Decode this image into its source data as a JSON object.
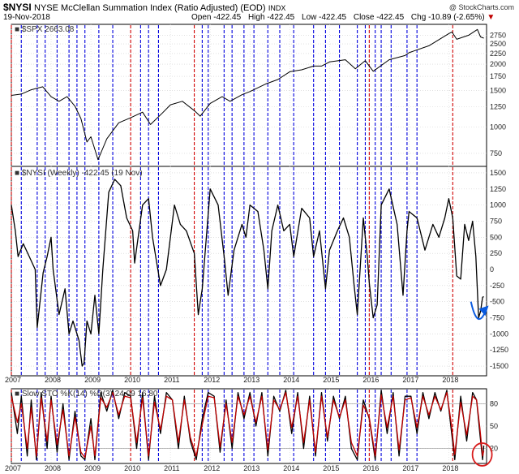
{
  "header": {
    "symbol": "$NYSI",
    "title_rest": "NYSE McClellan Summation Index (Ratio Adjusted) (EOD)",
    "exchange": "INDX",
    "watermark": "@ StockCharts.com",
    "date": "19-Nov-2018",
    "open_label": "Open",
    "open": "-422.45",
    "high_label": "High",
    "high": "-422.45",
    "low_label": "Low",
    "low": "-422.45",
    "close_label": "Close",
    "close": "-422.45",
    "chg_label": "Chg",
    "chg": "-10.89 (-2.65%)",
    "chg_arrow": "▼"
  },
  "chart_data": [
    {
      "panel": "price",
      "type": "line",
      "legend": "■ $SPX 2663.08",
      "scale": "log",
      "ylim": [
        650,
        3100
      ],
      "yticks": [
        750,
        1000,
        1250,
        1500,
        1750,
        2000,
        2250,
        2500,
        2750
      ],
      "series": [
        {
          "name": "$SPX",
          "color": "#000000",
          "x": [
            2007.0,
            2007.25,
            2007.5,
            2007.79,
            2008.0,
            2008.2,
            2008.4,
            2008.6,
            2008.75,
            2008.9,
            2009.0,
            2009.18,
            2009.4,
            2009.7,
            2010.0,
            2010.3,
            2010.5,
            2010.8,
            2011.0,
            2011.3,
            2011.6,
            2011.75,
            2012.0,
            2012.3,
            2012.5,
            2012.8,
            2013.0,
            2013.4,
            2013.7,
            2014.0,
            2014.3,
            2014.6,
            2014.8,
            2015.0,
            2015.4,
            2015.65,
            2015.9,
            2016.1,
            2016.5,
            2016.9,
            2017.0,
            2017.5,
            2018.0,
            2018.08,
            2018.2,
            2018.5,
            2018.72,
            2018.8,
            2018.88
          ],
          "values": [
            1420,
            1440,
            1510,
            1560,
            1400,
            1330,
            1400,
            1260,
            1100,
            850,
            900,
            700,
            880,
            1050,
            1110,
            1180,
            1030,
            1170,
            1280,
            1330,
            1200,
            1130,
            1300,
            1400,
            1330,
            1430,
            1480,
            1610,
            1690,
            1840,
            1880,
            1960,
            1960,
            2050,
            2100,
            1900,
            2080,
            1850,
            2100,
            2200,
            2270,
            2450,
            2800,
            2850,
            2630,
            2750,
            2930,
            2700,
            2663
          ]
        }
      ]
    },
    {
      "panel": "indicator",
      "type": "line",
      "legend": "■ $NYSI (Weekly) -422.45 (19 Nov)",
      "ylim": [
        -1650,
        1600
      ],
      "yticks": [
        -1500,
        -1250,
        -1000,
        -750,
        -500,
        -250,
        0,
        250,
        500,
        750,
        1000,
        1250,
        1500
      ],
      "series": [
        {
          "name": "$NYSI (Weekly)",
          "color": "#000000",
          "x": [
            2007.0,
            2007.1,
            2007.17,
            2007.3,
            2007.45,
            2007.6,
            2007.65,
            2007.8,
            2007.9,
            2008.0,
            2008.05,
            2008.2,
            2008.35,
            2008.45,
            2008.55,
            2008.7,
            2008.78,
            2008.83,
            2008.9,
            2009.0,
            2009.1,
            2009.2,
            2009.3,
            2009.45,
            2009.6,
            2009.75,
            2009.9,
            2010.05,
            2010.1,
            2010.3,
            2010.45,
            2010.55,
            2010.75,
            2010.9,
            2011.1,
            2011.25,
            2011.4,
            2011.6,
            2011.7,
            2011.8,
            2012.0,
            2012.2,
            2012.35,
            2012.45,
            2012.6,
            2012.8,
            2012.9,
            2013.0,
            2013.2,
            2013.35,
            2013.45,
            2013.55,
            2013.7,
            2013.85,
            2014.0,
            2014.1,
            2014.3,
            2014.5,
            2014.6,
            2014.75,
            2014.9,
            2015.0,
            2015.2,
            2015.35,
            2015.5,
            2015.62,
            2015.7,
            2015.85,
            2015.95,
            2016.0,
            2016.1,
            2016.2,
            2016.3,
            2016.5,
            2016.7,
            2016.85,
            2016.95,
            2017.0,
            2017.2,
            2017.4,
            2017.6,
            2017.75,
            2017.9,
            2018.0,
            2018.1,
            2018.2,
            2018.3,
            2018.4,
            2018.5,
            2018.6,
            2018.68,
            2018.75,
            2018.8,
            2018.85,
            2018.88
          ],
          "values": [
            1000,
            600,
            200,
            400,
            200,
            0,
            -900,
            -50,
            200,
            500,
            0,
            -700,
            -300,
            -1000,
            -800,
            -1100,
            -1500,
            -1450,
            -800,
            -1000,
            -400,
            -1000,
            0,
            1200,
            1400,
            1300,
            800,
            600,
            100,
            1000,
            1100,
            500,
            -250,
            0,
            1000,
            700,
            600,
            250,
            -700,
            -300,
            1250,
            1000,
            200,
            -400,
            300,
            700,
            500,
            1000,
            900,
            300,
            -300,
            600,
            1000,
            600,
            700,
            200,
            950,
            800,
            200,
            600,
            -300,
            300,
            600,
            800,
            500,
            -250,
            -700,
            800,
            200,
            -200,
            -750,
            -550,
            1000,
            1250,
            700,
            -400,
            600,
            900,
            800,
            300,
            700,
            500,
            800,
            1100,
            800,
            -100,
            -150,
            700,
            450,
            750,
            200,
            -750,
            -650,
            -430,
            -422
          ]
        }
      ]
    },
    {
      "panel": "stochastic",
      "type": "line",
      "legend": "■ Slow STO %K(14) %D(3) 24.09 16.80",
      "ylim": [
        0,
        100
      ],
      "yticks": [
        20,
        50,
        80
      ],
      "series": [
        {
          "name": "%K(14)",
          "color": "#000000",
          "x": [
            2007.0,
            2007.15,
            2007.25,
            2007.4,
            2007.5,
            2007.63,
            2007.75,
            2007.9,
            2008.0,
            2008.15,
            2008.3,
            2008.45,
            2008.6,
            2008.75,
            2008.85,
            2009.0,
            2009.1,
            2009.25,
            2009.4,
            2009.55,
            2009.7,
            2009.85,
            2010.0,
            2010.15,
            2010.3,
            2010.45,
            2010.6,
            2010.75,
            2010.9,
            2011.05,
            2011.2,
            2011.35,
            2011.5,
            2011.65,
            2011.8,
            2011.95,
            2012.1,
            2012.25,
            2012.4,
            2012.55,
            2012.7,
            2012.85,
            2013.0,
            2013.15,
            2013.3,
            2013.45,
            2013.6,
            2013.75,
            2013.9,
            2014.05,
            2014.2,
            2014.35,
            2014.5,
            2014.65,
            2014.8,
            2014.95,
            2015.1,
            2015.25,
            2015.4,
            2015.55,
            2015.7,
            2015.85,
            2016.0,
            2016.15,
            2016.3,
            2016.45,
            2016.6,
            2016.75,
            2016.9,
            2017.05,
            2017.2,
            2017.35,
            2017.5,
            2017.65,
            2017.8,
            2017.95,
            2018.05,
            2018.15,
            2018.3,
            2018.45,
            2018.6,
            2018.7,
            2018.78,
            2018.85,
            2018.88
          ],
          "values": [
            95,
            40,
            90,
            10,
            85,
            5,
            95,
            20,
            90,
            15,
            80,
            5,
            70,
            10,
            5,
            60,
            5,
            95,
            70,
            98,
            60,
            95,
            90,
            20,
            95,
            5,
            90,
            40,
            95,
            85,
            20,
            90,
            30,
            5,
            60,
            95,
            90,
            15,
            85,
            20,
            95,
            60,
            95,
            50,
            95,
            10,
            90,
            70,
            98,
            40,
            95,
            20,
            90,
            10,
            95,
            30,
            90,
            60,
            90,
            20,
            5,
            85,
            60,
            5,
            98,
            40,
            95,
            10,
            90,
            90,
            40,
            95,
            60,
            95,
            70,
            98,
            50,
            5,
            90,
            30,
            95,
            85,
            40,
            5,
            24
          ]
        },
        {
          "name": "%D(3)",
          "color": "#c00000",
          "x": [
            2007.0,
            2007.15,
            2007.25,
            2007.4,
            2007.5,
            2007.63,
            2007.75,
            2007.9,
            2008.0,
            2008.15,
            2008.3,
            2008.45,
            2008.6,
            2008.75,
            2008.85,
            2009.0,
            2009.1,
            2009.25,
            2009.4,
            2009.55,
            2009.7,
            2009.85,
            2010.0,
            2010.15,
            2010.3,
            2010.45,
            2010.6,
            2010.75,
            2010.9,
            2011.05,
            2011.2,
            2011.35,
            2011.5,
            2011.65,
            2011.8,
            2011.95,
            2012.1,
            2012.25,
            2012.4,
            2012.55,
            2012.7,
            2012.85,
            2013.0,
            2013.15,
            2013.3,
            2013.45,
            2013.6,
            2013.75,
            2013.9,
            2014.05,
            2014.2,
            2014.35,
            2014.5,
            2014.65,
            2014.8,
            2014.95,
            2015.1,
            2015.25,
            2015.4,
            2015.55,
            2015.7,
            2015.85,
            2016.0,
            2016.15,
            2016.3,
            2016.45,
            2016.6,
            2016.75,
            2016.9,
            2017.05,
            2017.2,
            2017.35,
            2017.5,
            2017.65,
            2017.8,
            2017.95,
            2018.05,
            2018.15,
            2018.3,
            2018.45,
            2018.6,
            2018.7,
            2018.78,
            2018.85,
            2018.88
          ],
          "values": [
            90,
            55,
            80,
            20,
            75,
            10,
            88,
            30,
            85,
            25,
            72,
            10,
            62,
            15,
            8,
            50,
            10,
            88,
            75,
            95,
            65,
            90,
            88,
            28,
            88,
            10,
            82,
            45,
            90,
            85,
            28,
            85,
            35,
            10,
            52,
            90,
            88,
            22,
            80,
            28,
            90,
            65,
            90,
            55,
            90,
            18,
            85,
            72,
            95,
            48,
            90,
            28,
            85,
            15,
            90,
            35,
            85,
            62,
            85,
            28,
            10,
            78,
            62,
            10,
            92,
            48,
            90,
            18,
            85,
            88,
            48,
            90,
            65,
            90,
            72,
            95,
            58,
            12,
            82,
            38,
            90,
            85,
            48,
            10,
            17
          ]
        }
      ]
    }
  ],
  "x_axis": {
    "year_labels": [
      "2007",
      "2008",
      "2009",
      "2010",
      "2011",
      "2012",
      "2013",
      "2014",
      "2015",
      "2016",
      "2017",
      "2018"
    ]
  },
  "colors": {
    "buy_line": "#0000dd",
    "sell_line": "#d00000",
    "annotation": "#0a5be0",
    "circle": "#d81c1c"
  },
  "annotations": {
    "sell_signals": [
      2007.0,
      2010.0,
      2011.6,
      2016.0,
      2018.1
    ],
    "buy_signals": [
      2007.25,
      2007.65,
      2007.85,
      2008.15,
      2008.45,
      2008.65,
      2008.85,
      2009.2,
      2009.55,
      2010.25,
      2010.45,
      2010.7,
      2011.8,
      2011.95,
      2012.35,
      2012.55,
      2012.85,
      2013.1,
      2013.45,
      2013.75,
      2014.1,
      2014.6,
      2014.9,
      2015.25,
      2015.7,
      2015.9,
      2016.15,
      2016.3,
      2016.55,
      2016.95,
      2017.2
    ]
  }
}
